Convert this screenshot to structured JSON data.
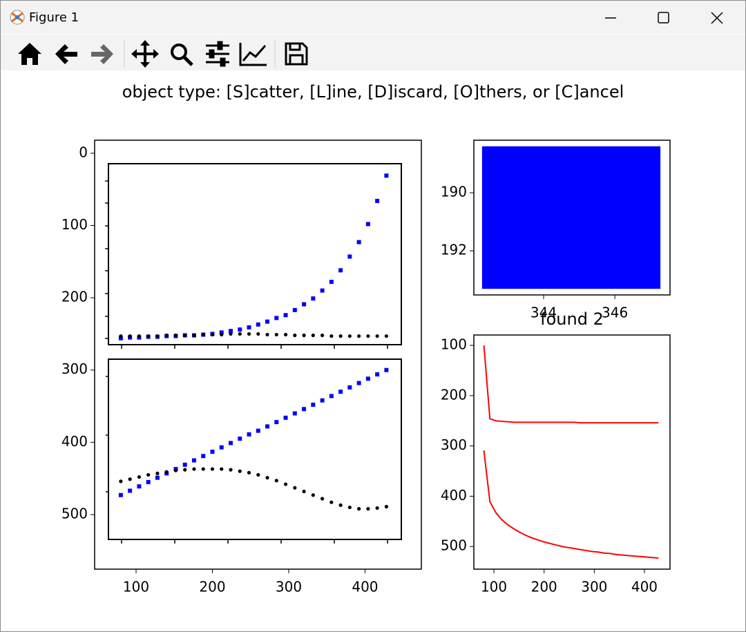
{
  "window": {
    "title": "Figure 1"
  },
  "prompt": "object type: [S]catter, [L]ine, [D]iscard, [O]thers, or [C]ancel",
  "chart_data": [
    {
      "type": "scatter",
      "x": [
        80,
        92,
        104,
        116,
        128,
        140,
        152,
        164,
        176,
        188,
        200,
        212,
        224,
        236,
        248,
        260,
        272,
        284,
        296,
        308,
        320,
        332,
        344,
        356,
        368,
        380,
        392,
        404,
        416,
        428
      ],
      "xlim": [
        45.7,
        473.8
      ],
      "ylim": [
        575.5,
        -18
      ],
      "xticks": [
        100,
        200,
        300,
        400
      ],
      "yticks": [
        0,
        100,
        200,
        300,
        400,
        500
      ],
      "series": [
        {
          "color": "#0000ff",
          "marker": "square",
          "values": [
            256,
            255,
            255,
            254,
            254,
            253,
            253,
            252,
            252,
            251,
            250,
            248,
            246,
            244,
            241,
            237,
            233,
            228,
            224,
            217,
            209,
            201,
            190,
            178,
            162,
            143,
            123,
            98,
            66,
            31
          ]
        },
        {
          "color": "#000000",
          "marker": "circle",
          "values": [
            253,
            253,
            253,
            253,
            253,
            252,
            252,
            252,
            252,
            251,
            251,
            251,
            250,
            250,
            250,
            250,
            251,
            251,
            251,
            252,
            252,
            252,
            252,
            253,
            253,
            253,
            253,
            253,
            253,
            253
          ]
        },
        {
          "color": "#0000ff",
          "marker": "square",
          "values": [
            473,
            467,
            461,
            455,
            449,
            443,
            437,
            431,
            425,
            419,
            413,
            407,
            401,
            395,
            389,
            384,
            378,
            372,
            366,
            360,
            354,
            348,
            342,
            336,
            330,
            324,
            318,
            312,
            306,
            300
          ]
        },
        {
          "color": "#000000",
          "marker": "circle",
          "values": [
            454,
            451,
            448,
            445,
            443,
            441,
            439,
            438,
            437,
            437,
            437,
            437,
            438,
            440,
            442,
            445,
            449,
            453,
            458,
            463,
            468,
            473,
            478,
            483,
            487,
            490,
            492,
            492,
            491,
            489
          ]
        }
      ]
    },
    {
      "type": "image",
      "rect": {
        "x": [
          342.27,
          347.28
        ],
        "y": [
          188.4,
          193.31
        ]
      },
      "color": "#0000ff",
      "xlim": [
        342.04,
        347.55
      ],
      "ylim": [
        193.52,
        188.19
      ],
      "xticks": [
        344,
        346
      ],
      "yticks": [
        190,
        192
      ]
    },
    {
      "type": "line",
      "title": "found 2",
      "x": [
        80,
        92,
        104,
        116,
        128,
        140,
        152,
        164,
        176,
        188,
        200,
        212,
        224,
        236,
        248,
        260,
        272,
        284,
        296,
        308,
        320,
        332,
        344,
        356,
        368,
        380,
        392,
        404,
        416,
        428
      ],
      "xlim": [
        60,
        451
      ],
      "ylim": [
        545,
        79.4
      ],
      "xticks": [
        100,
        200,
        300,
        400
      ],
      "yticks": [
        100,
        200,
        300,
        400,
        500
      ],
      "series": [
        {
          "color": "#ff0000",
          "values": [
            100,
            246,
            250,
            251,
            252,
            253,
            253,
            253,
            253,
            253,
            253,
            253,
            253,
            253,
            253,
            253,
            254,
            254,
            254,
            254,
            254,
            254,
            254,
            254,
            254,
            254,
            254,
            254,
            254,
            254
          ]
        },
        {
          "color": "#ff0000",
          "values": [
            309,
            411,
            433,
            447,
            457,
            465,
            472,
            478,
            483,
            487,
            491,
            494,
            497,
            500,
            502,
            504,
            506,
            508,
            510,
            511,
            513,
            514,
            516,
            517,
            518,
            519,
            520,
            521,
            522,
            523
          ]
        }
      ]
    }
  ]
}
